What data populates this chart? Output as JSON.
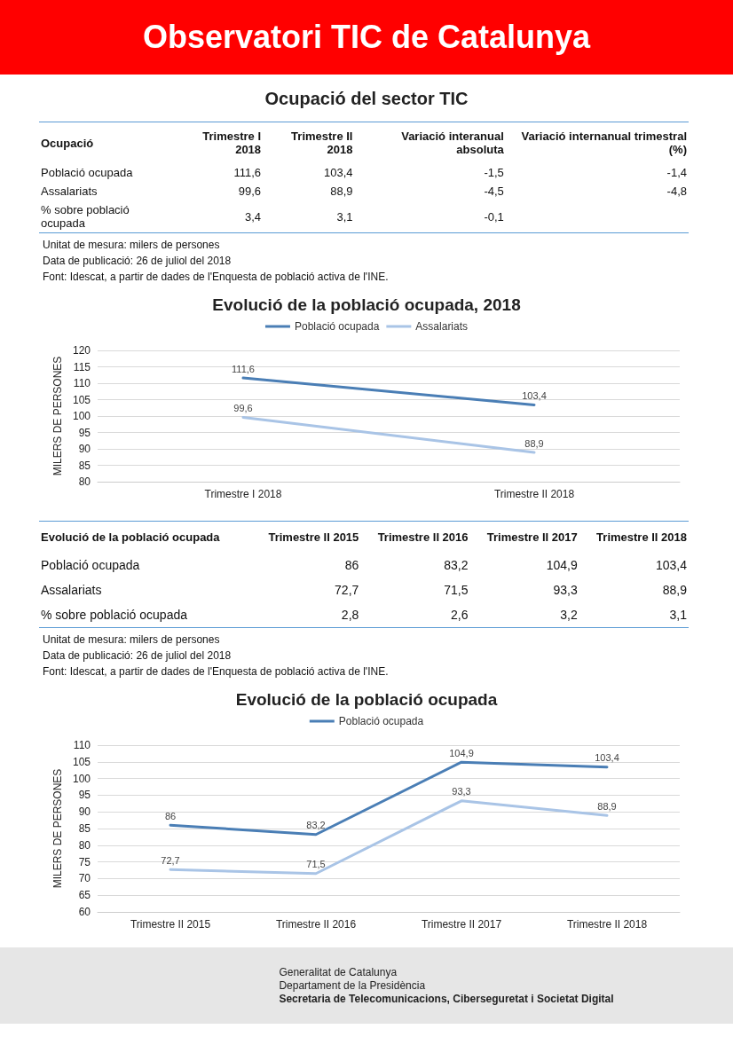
{
  "chart_data": [
    {
      "type": "other",
      "title": "Observatori TIC de Catalunya"
    },
    {
      "type": "other",
      "title": "Ocupació del sector TIC",
      "categories": [
        "Ocupació",
        "Trimestre I 2018",
        "Trimestre II 2018",
        "Variació interanual absoluta",
        "Variació internanual trimestral (%)"
      ],
      "y_categories": [
        "Població ocupada",
        "Assalariats",
        "% sobre població ocupada"
      ],
      "cell_labels": [
        [
          "111,6",
          "103,4",
          "-1,5",
          "-1,4"
        ],
        [
          "99,6",
          "88,9",
          "-4,5",
          "-4,8"
        ],
        [
          "3,4",
          "3,1",
          "-0,1",
          null
        ]
      ],
      "annotations": [
        "Unitat de mesura: milers de persones",
        "Data de publicació: 26 de juliol del 2018",
        "Font: Idescat, a partir de dades de l'Enquesta de població activa de l'INE."
      ]
    },
    {
      "type": "line",
      "title": "Evolució de la població ocupada, 2018",
      "categories": [
        "Trimestre I 2018",
        "Trimestre II 2018"
      ],
      "ylabel": "MILERS DE PERSONES",
      "ylim": [
        80,
        120
      ],
      "yticks": [
        80,
        85,
        90,
        95,
        100,
        105,
        110,
        115,
        120
      ],
      "grid": "y",
      "legend": "top",
      "series": [
        {
          "name": "Població ocupada",
          "color": "#4a7eb5",
          "values": [
            111.6,
            103.4
          ],
          "value_labels": [
            "111,6",
            "103,4"
          ]
        },
        {
          "name": "Assalariats",
          "color": "#a9c4e6",
          "values": [
            99.6,
            88.9
          ],
          "value_labels": [
            "99,6",
            "88,9"
          ]
        }
      ]
    },
    {
      "type": "other",
      "categories": [
        "Evolució de la població ocupada",
        "Trimestre II 2015",
        "Trimestre II 2016",
        "Trimestre II 2017",
        "Trimestre II 2018"
      ],
      "y_categories": [
        "Població ocupada",
        "Assalariats",
        "% sobre població ocupada"
      ],
      "cell_labels": [
        [
          "86",
          "83,2",
          "104,9",
          "103,4"
        ],
        [
          "72,7",
          "71,5",
          "93,3",
          "88,9"
        ],
        [
          "2,8",
          "2,6",
          "3,2",
          "3,1"
        ]
      ],
      "annotations": [
        "Unitat de mesura: milers de persones",
        "Data de publicació: 26 de juliol del 2018",
        "Font: Idescat, a partir de dades de l'Enquesta de població activa de l'INE."
      ]
    },
    {
      "type": "line",
      "title": "Evolució de la població ocupada",
      "categories": [
        "Trimestre II 2015",
        "Trimestre II 2016",
        "Trimestre II 2017",
        "Trimestre II 2018"
      ],
      "ylabel": "MILERS DE PERSONES",
      "ylim": [
        60,
        110
      ],
      "yticks": [
        60,
        65,
        70,
        75,
        80,
        85,
        90,
        95,
        100,
        105,
        110
      ],
      "grid": "y",
      "legend": "top",
      "series": [
        {
          "name": "Població ocupada",
          "color": "#4a7eb5",
          "values": [
            86,
            83.2,
            104.9,
            103.4
          ],
          "value_labels": [
            "86",
            "83,2",
            "104,9",
            "103,4"
          ]
        },
        {
          "color": "#a9c4e6",
          "values": [
            72.7,
            71.5,
            93.3,
            88.9
          ],
          "value_labels": [
            "72,7",
            "71,5",
            "93,3",
            "88,9"
          ]
        }
      ]
    },
    {
      "type": "other",
      "annotations": [
        "Generalitat de Catalunya",
        "Departament de la Presidència",
        "Secretaria de Telecomunicacions, Ciberseguretat i Societat Digital"
      ]
    }
  ]
}
